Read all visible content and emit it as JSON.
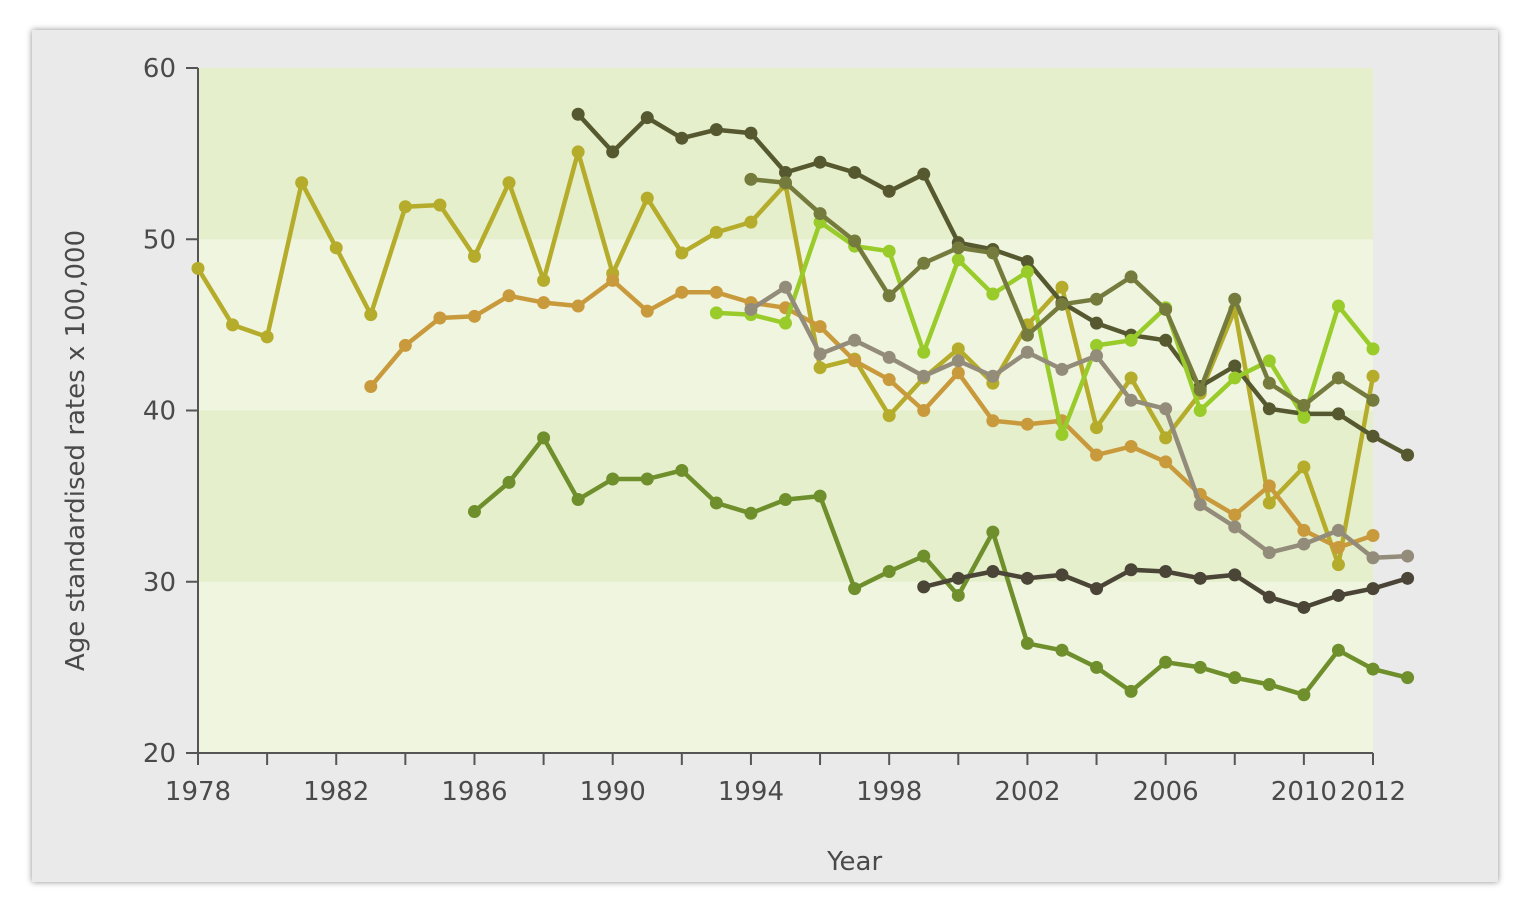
{
  "chart_data": {
    "type": "line",
    "title": "",
    "xlabel": "Year",
    "ylabel": "Age standardised rates x 100,000",
    "xlim": [
      1978,
      2012
    ],
    "ylim": [
      20,
      60
    ],
    "x_ticks": [
      1978,
      1982,
      1986,
      1990,
      1994,
      1998,
      2002,
      2006,
      2010,
      2012
    ],
    "y_ticks": [
      20,
      30,
      40,
      50,
      60
    ],
    "bands": [
      {
        "from": 20,
        "to": 30,
        "color": "#f0f5df"
      },
      {
        "from": 30,
        "to": 40,
        "color": "#e5efcb"
      },
      {
        "from": 40,
        "to": 50,
        "color": "#f0f5df"
      },
      {
        "from": 50,
        "to": 60,
        "color": "#e5efcb"
      }
    ],
    "grid": false,
    "legend": "none",
    "series": [
      {
        "color": "#b4ac2a",
        "x": [
          1978,
          1979,
          1980,
          1981,
          1982,
          1983,
          1984,
          1985,
          1986,
          1987,
          1988,
          1989,
          1990,
          1991,
          1992,
          1993,
          1994,
          1995,
          1996,
          1997,
          1998,
          1999,
          2000,
          2001,
          2002,
          2003,
          2004,
          2005,
          2006,
          2007,
          2008,
          2009,
          2010,
          2011,
          2012
        ],
        "y": [
          48.3,
          45.0,
          44.3,
          53.3,
          49.5,
          45.6,
          51.9,
          52.0,
          49.0,
          53.3,
          47.6,
          55.1,
          48.0,
          52.4,
          49.2,
          50.4,
          51.0,
          53.2,
          42.5,
          43.0,
          39.7,
          41.9,
          43.6,
          41.6,
          45.0,
          47.2,
          39.0,
          41.9,
          38.4,
          41.0,
          45.9,
          34.6,
          36.7,
          31.0,
          42.0
        ]
      },
      {
        "color": "#c99a3c",
        "x": [
          1983,
          1984,
          1985,
          1986,
          1987,
          1988,
          1989,
          1990,
          1991,
          1992,
          1993,
          1994,
          1995,
          1996,
          1997,
          1998,
          1999,
          2000,
          2001,
          2002,
          2003,
          2004,
          2005,
          2006,
          2007,
          2008,
          2009,
          2010,
          2011,
          2012
        ],
        "y": [
          41.4,
          43.8,
          45.4,
          45.5,
          46.7,
          46.3,
          46.1,
          47.6,
          45.8,
          46.9,
          46.9,
          46.3,
          46.0,
          44.9,
          42.9,
          41.8,
          40.0,
          42.2,
          39.4,
          39.2,
          39.4,
          37.4,
          37.9,
          37.0,
          35.1,
          33.9,
          35.6,
          33.0,
          32.0,
          32.7
        ]
      },
      {
        "color": "#6e8f2c",
        "x": [
          1986,
          1987,
          1988,
          1989,
          1990,
          1991,
          1992,
          1993,
          1994,
          1995,
          1996,
          1997,
          1998,
          1999,
          2000,
          2001,
          2002,
          2003,
          2004,
          2005,
          2006,
          2007,
          2008,
          2009,
          2010,
          2011,
          2012,
          2013
        ],
        "y": [
          34.1,
          35.8,
          38.4,
          34.8,
          36.0,
          36.0,
          36.5,
          34.6,
          34.0,
          34.8,
          35.0,
          29.6,
          30.6,
          31.5,
          29.2,
          32.9,
          26.4,
          26.0,
          25.0,
          23.6,
          25.3,
          25.0,
          24.4,
          24.0,
          23.4,
          26.0,
          24.9,
          24.4
        ]
      },
      {
        "color": "#56582f",
        "x": [
          1989,
          1990,
          1991,
          1992,
          1993,
          1994,
          1995,
          1996,
          1997,
          1998,
          1999,
          2000,
          2001,
          2002,
          2003,
          2004,
          2005,
          2006,
          2007,
          2008,
          2009,
          2010,
          2011,
          2012,
          2013
        ],
        "y": [
          57.3,
          55.1,
          57.1,
          55.9,
          56.4,
          56.2,
          53.9,
          54.5,
          53.9,
          52.8,
          53.8,
          49.8,
          49.4,
          48.7,
          46.3,
          45.1,
          44.4,
          44.1,
          41.4,
          42.6,
          40.1,
          39.8,
          39.8,
          38.5,
          37.4
        ]
      },
      {
        "color": "#99cc2a",
        "x": [
          1993,
          1994,
          1995,
          1996,
          1997,
          1998,
          1999,
          2000,
          2001,
          2002,
          2003,
          2004,
          2005,
          2006,
          2007,
          2008,
          2009,
          2010,
          2011,
          2012
        ],
        "y": [
          45.7,
          45.6,
          45.1,
          51.0,
          49.6,
          49.3,
          43.4,
          48.8,
          46.8,
          48.1,
          38.6,
          43.8,
          44.1,
          46.0,
          40.0,
          41.9,
          42.9,
          39.6,
          46.1,
          43.6
        ]
      },
      {
        "color": "#938c7a",
        "x": [
          1994,
          1995,
          1996,
          1997,
          1998,
          1999,
          2000,
          2001,
          2002,
          2003,
          2004,
          2005,
          2006,
          2007,
          2008,
          2009,
          2010,
          2011,
          2012,
          2013
        ],
        "y": [
          45.9,
          47.2,
          43.3,
          44.1,
          43.1,
          42.0,
          42.9,
          42.0,
          43.4,
          42.4,
          43.2,
          40.6,
          40.1,
          34.5,
          33.2,
          31.7,
          32.2,
          33.0,
          31.4,
          31.5
        ]
      },
      {
        "color": "#757a3d",
        "x": [
          1994,
          1995,
          1996,
          1997,
          1998,
          1999,
          2000,
          2001,
          2002,
          2003,
          2004,
          2005,
          2006,
          2007,
          2008,
          2009,
          2010,
          2011,
          2012
        ],
        "y": [
          53.5,
          53.3,
          51.5,
          49.9,
          46.7,
          48.6,
          49.5,
          49.2,
          44.4,
          46.2,
          46.5,
          47.8,
          45.9,
          41.2,
          46.5,
          41.6,
          40.3,
          41.9,
          40.6
        ]
      },
      {
        "color": "#4a4536",
        "x": [
          1999,
          2000,
          2001,
          2002,
          2003,
          2004,
          2005,
          2006,
          2007,
          2008,
          2009,
          2010,
          2011,
          2012,
          2013
        ],
        "y": [
          29.7,
          30.2,
          30.6,
          30.2,
          30.4,
          29.6,
          30.7,
          30.6,
          30.2,
          30.4,
          29.1,
          28.5,
          29.2,
          29.6,
          30.2
        ]
      }
    ]
  }
}
